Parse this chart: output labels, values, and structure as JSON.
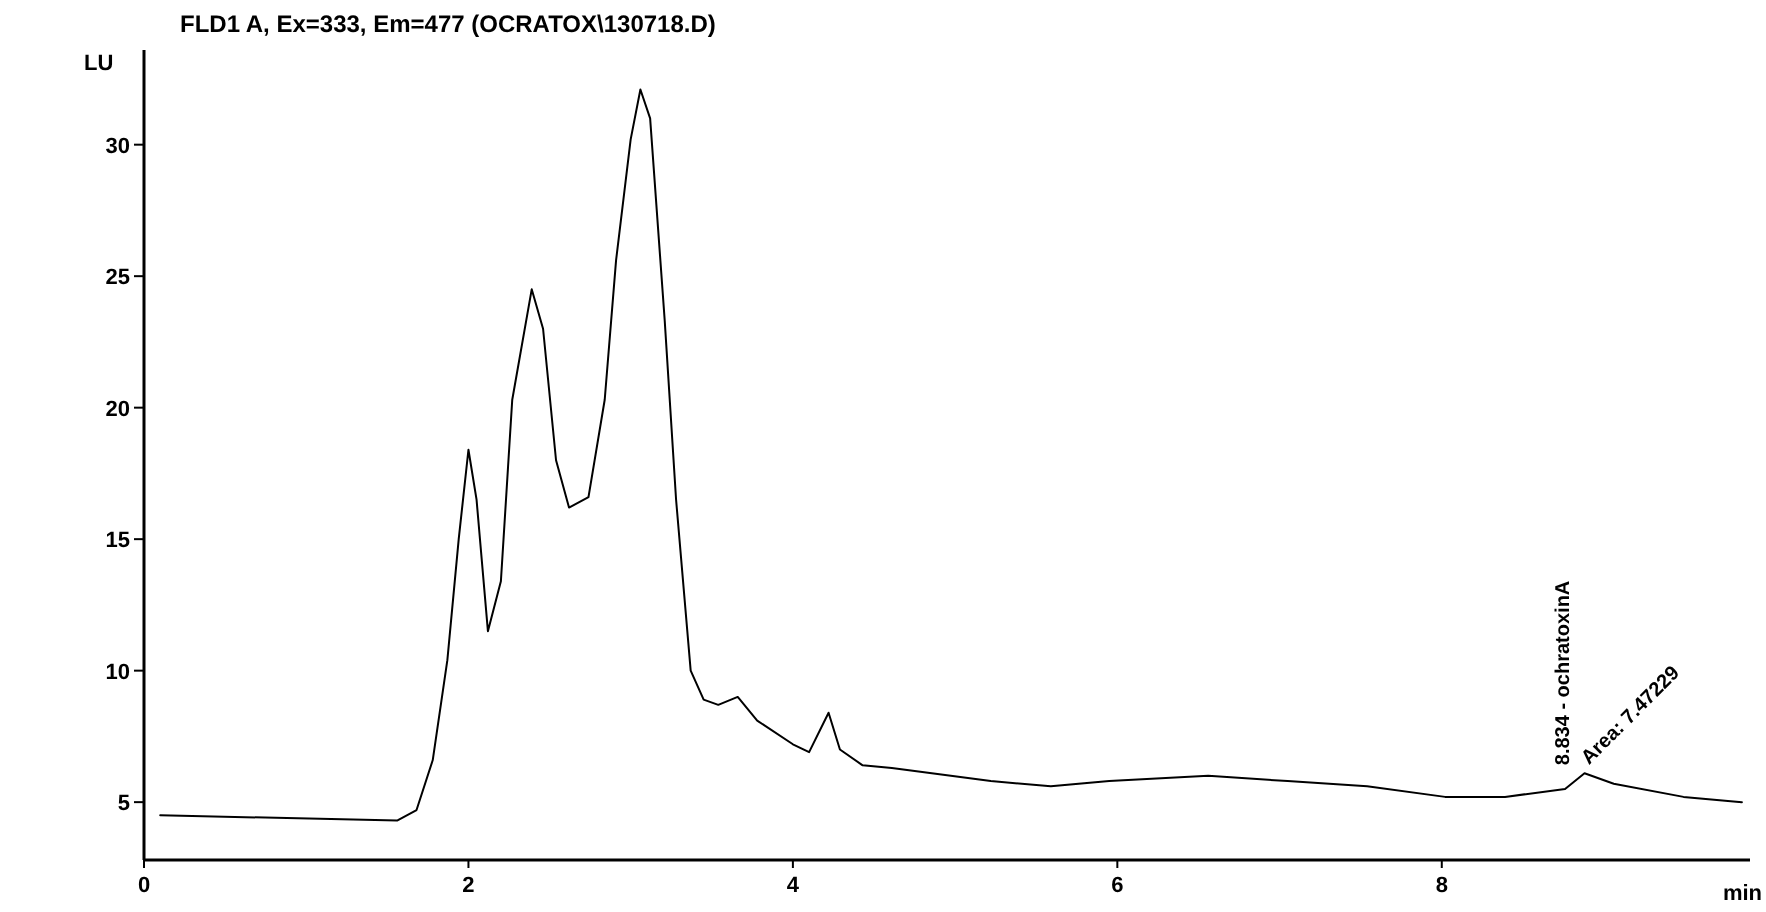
{
  "chart_data": {
    "type": "line",
    "title": "FLD1 A, Ex=333, Em=477 (OCRATOX\\130718.D)",
    "xlabel": "min",
    "ylabel": "LU",
    "x": [
      0.1,
      1.56,
      1.68,
      1.78,
      1.87,
      1.94,
      2.0,
      2.05,
      2.12,
      2.2,
      2.27,
      2.39,
      2.46,
      2.54,
      2.62,
      2.74,
      2.84,
      2.91,
      3.0,
      3.06,
      3.12,
      3.21,
      3.28,
      3.37,
      3.45,
      3.54,
      3.66,
      3.78,
      4.0,
      4.1,
      4.22,
      4.29,
      4.43,
      4.61,
      5.22,
      5.59,
      5.95,
      6.56,
      7.05,
      7.54,
      8.02,
      8.39,
      8.76,
      8.88,
      9.06,
      9.49,
      9.85
    ],
    "series": [
      {
        "color": "#000000",
        "values": [
          4.5,
          4.3,
          4.7,
          6.6,
          10.4,
          15,
          18.4,
          16.5,
          11.5,
          13.4,
          20.3,
          24.5,
          23,
          18,
          16.2,
          16.6,
          20.3,
          25.6,
          30.2,
          32.1,
          31,
          23.3,
          16.5,
          10,
          8.9,
          8.7,
          9,
          8.1,
          7.2,
          6.9,
          8.4,
          7,
          6.4,
          6.3,
          5.8,
          5.6,
          5.8,
          6.0,
          5.8,
          5.6,
          5.2,
          5.2,
          5.5,
          6.1,
          5.7,
          5.2,
          5.0
        ]
      }
    ],
    "xlim": [
      0,
      9.9
    ],
    "xticks": [
      0,
      2,
      4,
      6,
      8
    ],
    "ylim": [
      2.8,
      33.6
    ],
    "yticks": [
      5,
      10,
      15,
      20,
      25,
      30
    ],
    "grid": false,
    "marker": "none",
    "line_style": "solid",
    "annotations": [
      {
        "text": "8.834 - ochratoxinA",
        "x": 8.834,
        "y": 6.1
      },
      {
        "text": "Area: 7.47229",
        "x": 8.834,
        "y": 6.1
      }
    ]
  }
}
